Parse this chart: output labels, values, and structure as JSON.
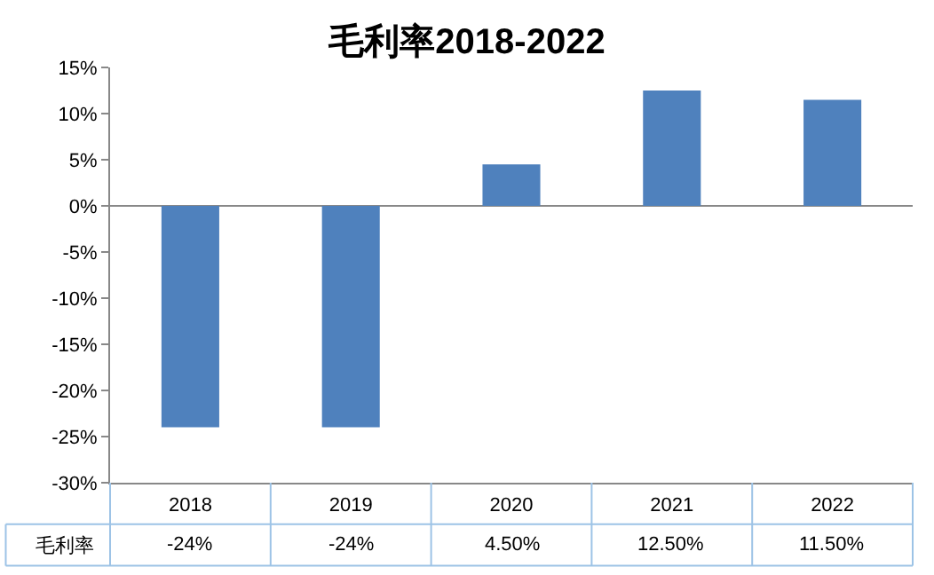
{
  "chart_data": {
    "type": "bar",
    "title": "毛利率2018-2022",
    "categories": [
      "2018",
      "2019",
      "2020",
      "2021",
      "2022"
    ],
    "series": [
      {
        "name": "毛利率",
        "color": "#4f81bd",
        "values": [
          -24,
          -24,
          4.5,
          12.5,
          11.5
        ],
        "value_labels": [
          "-24%",
          "-24%",
          "4.50%",
          "12.50%",
          "11.50%"
        ]
      }
    ],
    "ylim": [
      -30,
      15
    ],
    "yticks": [
      {
        "value": -30,
        "label": "-30%"
      },
      {
        "value": -25,
        "label": "-25%"
      },
      {
        "value": -20,
        "label": "-20%"
      },
      {
        "value": -15,
        "label": "-15%"
      },
      {
        "value": -10,
        "label": "-10%"
      },
      {
        "value": -5,
        "label": "-5%"
      },
      {
        "value": 0,
        "label": "0%"
      },
      {
        "value": 5,
        "label": "5%"
      },
      {
        "value": 10,
        "label": "10%"
      },
      {
        "value": 15,
        "label": "15%"
      }
    ],
    "legend": false
  }
}
